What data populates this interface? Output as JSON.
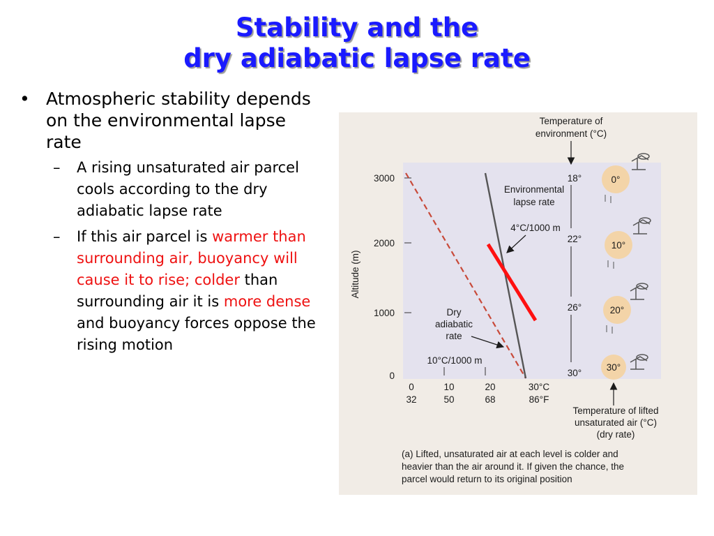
{
  "title": {
    "line1": "Stability and the",
    "line2": "dry adiabatic lapse rate"
  },
  "bullets": {
    "main": "Atmospheric stability depends on the environmental lapse rate",
    "sub1": "A rising unsaturated air parcel cools according to the dry adiabatic lapse rate",
    "sub2": {
      "part1": "If this air parcel is",
      "part2": "warmer than surrounding air, buoyancy will cause it to rise; colder",
      "part3": "than surrounding air it is",
      "part4": "more dense",
      "part5": "and buoyancy forces oppose the rising motion"
    }
  },
  "figure": {
    "env_temp_label_1": "Temperature of",
    "env_temp_label_2": "environment (°C)",
    "env_lapse_label_1": "Environmental",
    "env_lapse_label_2": "lapse rate",
    "env_rate": "4°C/1000 m",
    "dry_label_1": "Dry",
    "dry_label_2": "adiabatic",
    "dry_label_3": "rate",
    "dry_rate": "10°C/1000 m",
    "y_axis_label": "Altitude (m)",
    "altitudes": [
      "3000",
      "2000",
      "1000",
      "0"
    ],
    "x_ticks_c": [
      "0",
      "10",
      "20",
      "30°C"
    ],
    "x_ticks_f": [
      "32",
      "50",
      "68",
      "86°F"
    ],
    "env_temps": [
      "18°",
      "22°",
      "26°",
      "30°"
    ],
    "parcel_temps": [
      "0°",
      "10°",
      "20°",
      "30°"
    ],
    "lifted_label_1": "Temperature of lifted",
    "lifted_label_2": "unsaturated air (°C)",
    "lifted_label_3": "(dry rate)",
    "caption_1": "(a)  Lifted, unsaturated air at each level is colder and",
    "caption_2": "heavier than the air around it. If given the chance, the",
    "caption_3": "parcel would return to its original position",
    "colors": {
      "title": "#1a1aff",
      "highlight": "#ee1111",
      "dry_line": "#c84a3a",
      "env_line": "#555555",
      "parcel_circle": "#f3d4a8",
      "plot_bg": "#e4e2ee"
    }
  }
}
